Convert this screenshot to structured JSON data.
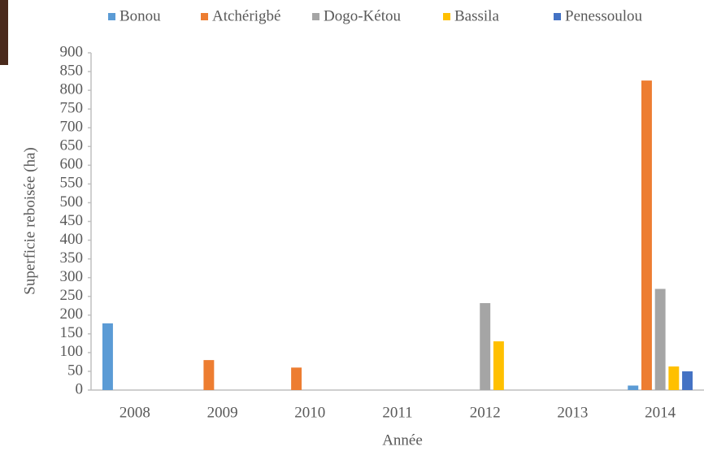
{
  "chart_data": {
    "type": "bar",
    "x_label": "Année",
    "y_label": "Superficie reboisée (ha)",
    "categories": [
      "2008",
      "2009",
      "2010",
      "2011",
      "2012",
      "2013",
      "2014"
    ],
    "series": [
      {
        "name": "Bonou",
        "color": "#5b9bd5",
        "values": [
          178,
          null,
          null,
          null,
          null,
          null,
          12
        ]
      },
      {
        "name": "Atchérigbé",
        "color": "#ed7d31",
        "values": [
          null,
          80,
          60,
          null,
          null,
          null,
          826
        ]
      },
      {
        "name": "Dogo-Kétou",
        "color": "#a5a5a5",
        "values": [
          null,
          null,
          null,
          null,
          232,
          null,
          270
        ]
      },
      {
        "name": "Bassila",
        "color": "#ffc000",
        "values": [
          null,
          null,
          null,
          null,
          130,
          null,
          63
        ]
      },
      {
        "name": "Penessoulou",
        "color": "#4472c4",
        "values": [
          null,
          null,
          null,
          null,
          null,
          null,
          50
        ]
      }
    ],
    "ylim": [
      0,
      900
    ],
    "yticks": [
      0,
      50,
      100,
      150,
      200,
      250,
      300,
      350,
      400,
      450,
      500,
      550,
      600,
      650,
      700,
      750,
      800,
      850,
      900
    ],
    "grid": false,
    "legend": "top"
  }
}
